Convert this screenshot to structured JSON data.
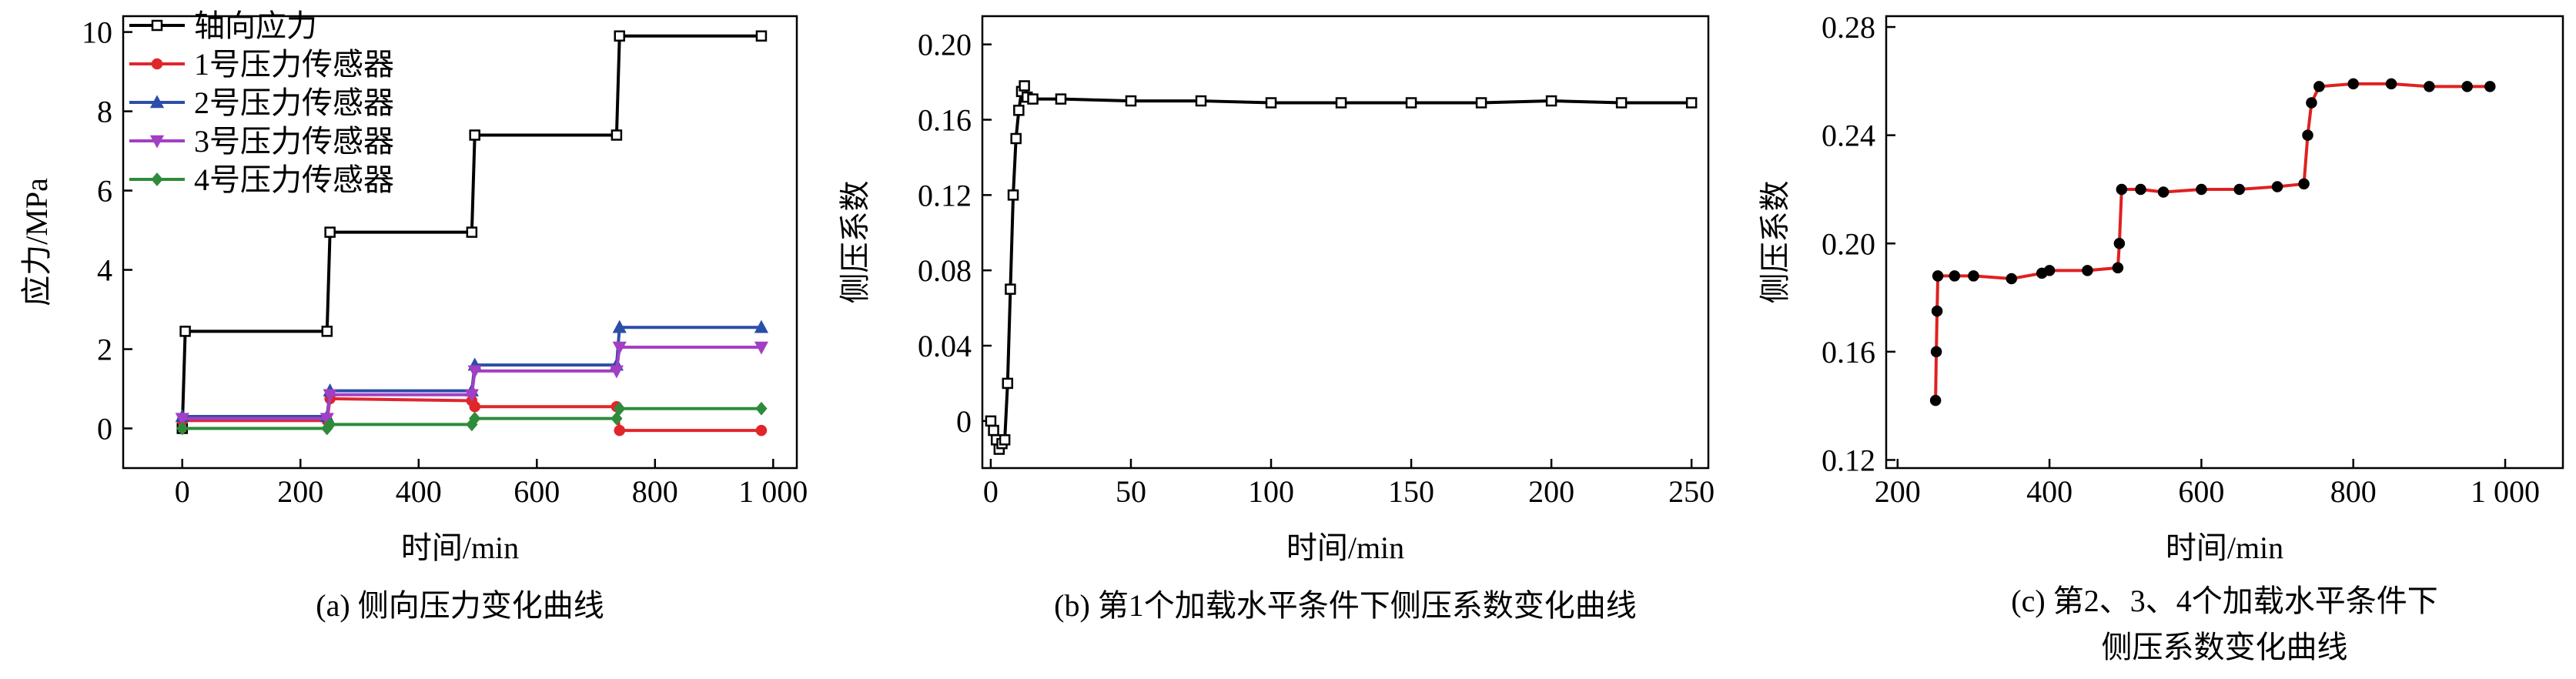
{
  "chart_data": [
    {
      "type": "line",
      "caption": "(a) 侧向压力变化曲线",
      "x_label": "时间/min",
      "y_label": "应力/MPa",
      "xlim": [
        -100,
        1040
      ],
      "ylim": [
        -1,
        10.4
      ],
      "xticks": [
        0,
        200,
        400,
        600,
        800,
        {
          "value": 1000,
          "label": "1 000"
        }
      ],
      "yticks": [
        0,
        2,
        4,
        6,
        8,
        10
      ],
      "legend": "upper left",
      "series": [
        {
          "name": "轴向应力",
          "color": "#000000",
          "marker": "square",
          "x": [
            0,
            5,
            245,
            250,
            490,
            495,
            735,
            740,
            980
          ],
          "values": [
            0,
            2.45,
            2.45,
            4.95,
            4.95,
            7.4,
            7.4,
            9.9,
            9.9
          ]
        },
        {
          "name": "1号压力传感器",
          "color": "#e0262b",
          "marker": "circle",
          "x": [
            0,
            245,
            250,
            490,
            495,
            735,
            740,
            980
          ],
          "values": [
            0.2,
            0.2,
            0.75,
            0.7,
            0.55,
            0.55,
            -0.05,
            -0.05
          ]
        },
        {
          "name": "2号压力传感器",
          "color": "#2b4ea8",
          "marker": "triangle",
          "x": [
            0,
            245,
            250,
            490,
            495,
            735,
            740,
            980
          ],
          "values": [
            0.3,
            0.3,
            0.95,
            0.95,
            1.6,
            1.6,
            2.55,
            2.55
          ]
        },
        {
          "name": "3号压力传感器",
          "color": "#a23fc4",
          "marker": "triangle-down",
          "x": [
            0,
            245,
            250,
            490,
            495,
            735,
            740,
            980
          ],
          "values": [
            0.25,
            0.25,
            0.85,
            0.85,
            1.45,
            1.45,
            2.05,
            2.05
          ]
        },
        {
          "name": "4号压力传感器",
          "color": "#2e8b3a",
          "marker": "diamond",
          "x": [
            0,
            245,
            250,
            490,
            495,
            735,
            740,
            980
          ],
          "values": [
            0,
            0,
            0.1,
            0.1,
            0.25,
            0.25,
            0.5,
            0.5
          ]
        }
      ]
    },
    {
      "type": "line",
      "caption": "(b) 第1个加载水平条件下侧压系数变化曲线",
      "x_label": "时间/min",
      "y_label": "侧压系数",
      "xlim": [
        -3,
        256
      ],
      "ylim": [
        -0.025,
        0.215
      ],
      "xticks": [
        0,
        50,
        100,
        150,
        200,
        250
      ],
      "yticks": [
        0,
        0.04,
        0.08,
        0.12,
        0.16,
        {
          "value": 0.2,
          "label": "0.20"
        }
      ],
      "series": [
        {
          "color": "#000000",
          "marker": "square",
          "x": [
            0,
            1,
            2,
            3,
            4,
            5,
            6,
            7,
            8,
            9,
            10,
            11,
            12,
            13,
            15,
            25,
            50,
            75,
            100,
            125,
            150,
            175,
            200,
            225,
            250
          ],
          "values": [
            0,
            -0.005,
            -0.01,
            -0.015,
            -0.012,
            -0.01,
            0.02,
            0.07,
            0.12,
            0.15,
            0.165,
            0.175,
            0.178,
            0.172,
            0.171,
            0.171,
            0.17,
            0.17,
            0.169,
            0.169,
            0.169,
            0.169,
            0.17,
            0.169,
            0.169
          ]
        }
      ]
    },
    {
      "type": "line",
      "caption": "(c) 第2、3、4个加载水平条件下侧压系数变化曲线",
      "caption_lines": [
        "(c) 第2、3、4个加载水平条件下",
        "侧压系数变化曲线"
      ],
      "x_label": "时间/min",
      "y_label": "侧压系数",
      "xlim": [
        185,
        1076
      ],
      "ylim": [
        0.117,
        0.284
      ],
      "xticks": [
        200,
        400,
        600,
        800,
        {
          "value": 1000,
          "label": "1 000"
        }
      ],
      "yticks": [
        0.12,
        0.16,
        {
          "value": 0.2,
          "label": "0.20"
        },
        0.24,
        0.28
      ],
      "series": [
        {
          "color": "#e02020",
          "marker_color": "#000000",
          "marker": "circle",
          "x": [
            250,
            251,
            252,
            253,
            275,
            300,
            350,
            390,
            400,
            450,
            490,
            492,
            495,
            520,
            550,
            600,
            650,
            700,
            735,
            740,
            745,
            755,
            800,
            850,
            900,
            950,
            980
          ],
          "values": [
            0.142,
            0.16,
            0.175,
            0.188,
            0.188,
            0.188,
            0.187,
            0.189,
            0.19,
            0.19,
            0.191,
            0.2,
            0.22,
            0.22,
            0.219,
            0.22,
            0.22,
            0.221,
            0.222,
            0.24,
            0.252,
            0.258,
            0.259,
            0.259,
            0.258,
            0.258,
            0.258
          ]
        }
      ]
    }
  ]
}
